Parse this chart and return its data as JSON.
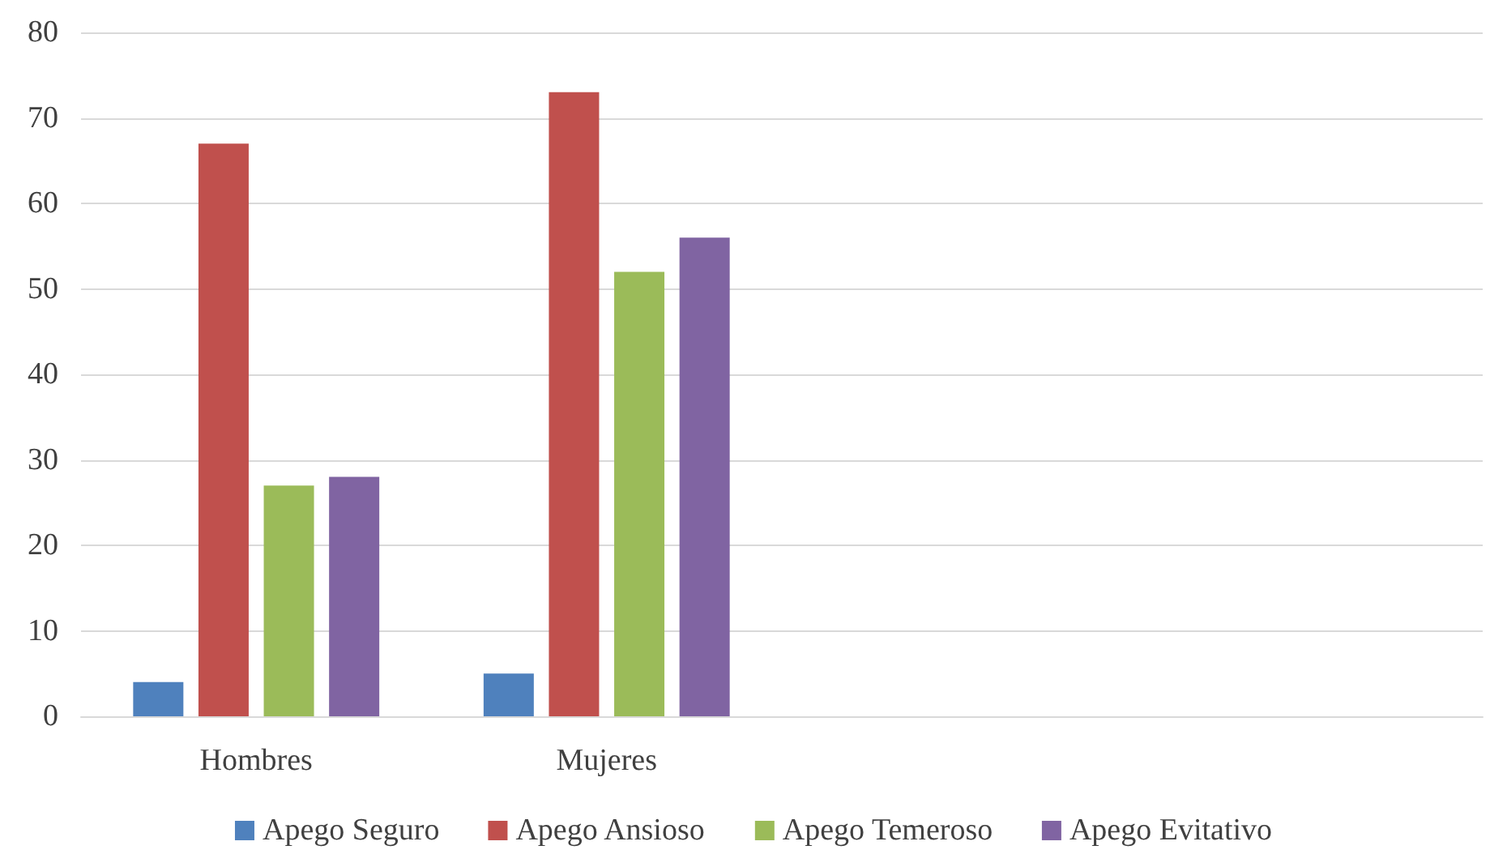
{
  "chart_data": {
    "type": "bar",
    "categories": [
      "Hombres",
      "Mujeres",
      null,
      null
    ],
    "series": [
      {
        "name": "Apego Seguro",
        "color": "#4f81bd",
        "values": [
          4,
          5,
          null,
          null
        ]
      },
      {
        "name": "Apego Ansioso",
        "color": "#c0504d",
        "values": [
          67,
          73,
          null,
          null
        ]
      },
      {
        "name": "Apego Temeroso",
        "color": "#9bbb59",
        "values": [
          27,
          52,
          null,
          null
        ]
      },
      {
        "name": "Apego Evitativo",
        "color": "#8064a2",
        "values": [
          28,
          56,
          null,
          null
        ]
      }
    ],
    "ylim": [
      0,
      80
    ],
    "yticks": [
      0,
      10,
      20,
      30,
      40,
      50,
      60,
      70,
      80
    ],
    "grid": "y",
    "legend": "bottom"
  }
}
